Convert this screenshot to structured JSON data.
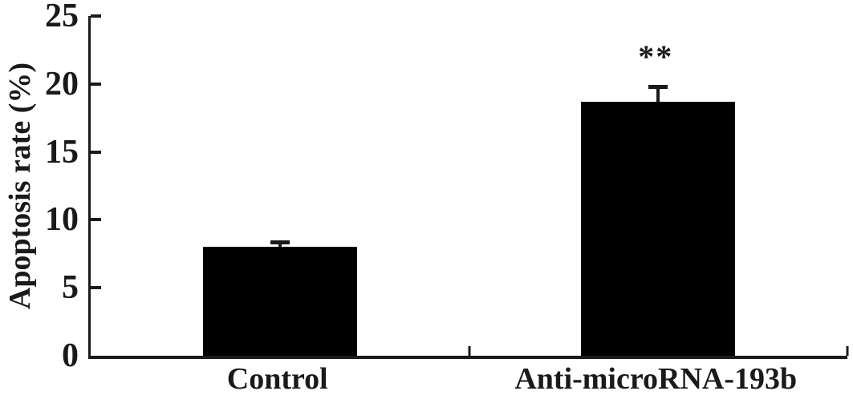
{
  "chart_data": {
    "type": "bar",
    "title": "",
    "xlabel": "",
    "ylabel": "Apoptosis rate (%)",
    "categories": [
      "Control",
      "Anti-microRNA-193b"
    ],
    "values": [
      8.0,
      18.7
    ],
    "errors": [
      0.5,
      1.2
    ],
    "annotations": [
      "",
      "**"
    ],
    "ylim": [
      0,
      25
    ],
    "y_ticks": [
      0,
      5,
      10,
      15,
      20,
      25
    ],
    "bar_color": "#000000",
    "axis_color": "#1a1a1a",
    "grid": false,
    "legend": false
  }
}
